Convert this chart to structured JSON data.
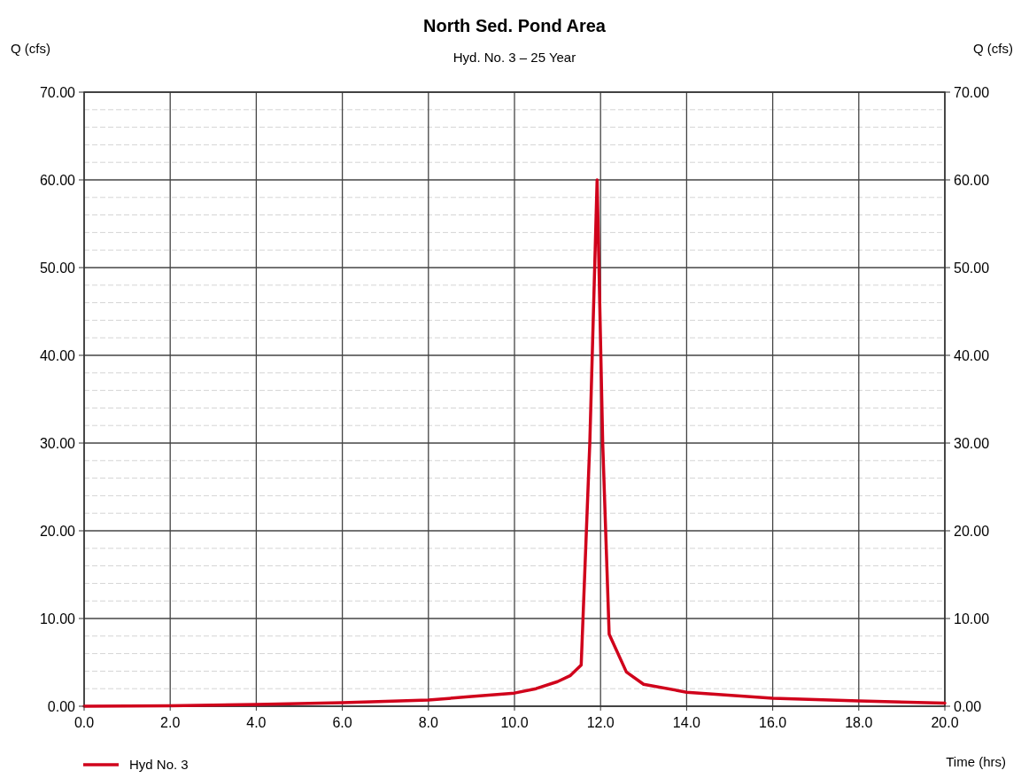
{
  "chart_data": {
    "type": "line",
    "title": "North Sed. Pond Area",
    "subtitle": "Hyd. No. 3 – 25 Year",
    "xlabel": "Time (hrs)",
    "ylabel": "Q (cfs)",
    "y2label": "Q (cfs)",
    "xlim": [
      0,
      20
    ],
    "xticks": [
      {
        "value": 0,
        "label": "0.0"
      },
      {
        "value": 2,
        "label": "2.0"
      },
      {
        "value": 4,
        "label": "4.0"
      },
      {
        "value": 6,
        "label": "6.0"
      },
      {
        "value": 8,
        "label": "8.0"
      },
      {
        "value": 10,
        "label": "10.0"
      },
      {
        "value": 12,
        "label": "12.0"
      },
      {
        "value": 14,
        "label": "14.0"
      },
      {
        "value": 16,
        "label": "16.0"
      },
      {
        "value": 18,
        "label": "18.0"
      },
      {
        "value": 20,
        "label": "20.0"
      }
    ],
    "ylim": [
      0,
      70
    ],
    "yticks": [
      {
        "value": 0,
        "label": "0.00"
      },
      {
        "value": 2,
        "label": null
      },
      {
        "value": 4,
        "label": null
      },
      {
        "value": 6,
        "label": null
      },
      {
        "value": 8,
        "label": null
      },
      {
        "value": 10,
        "label": "10.00"
      },
      {
        "value": 12,
        "label": null
      },
      {
        "value": 14,
        "label": null
      },
      {
        "value": 16,
        "label": null
      },
      {
        "value": 18,
        "label": null
      },
      {
        "value": 20,
        "label": "20.00"
      },
      {
        "value": 22,
        "label": null
      },
      {
        "value": 24,
        "label": null
      },
      {
        "value": 26,
        "label": null
      },
      {
        "value": 28,
        "label": null
      },
      {
        "value": 30,
        "label": "30.00"
      },
      {
        "value": 32,
        "label": null
      },
      {
        "value": 34,
        "label": null
      },
      {
        "value": 36,
        "label": null
      },
      {
        "value": 38,
        "label": null
      },
      {
        "value": 40,
        "label": "40.00"
      },
      {
        "value": 42,
        "label": null
      },
      {
        "value": 44,
        "label": null
      },
      {
        "value": 46,
        "label": null
      },
      {
        "value": 48,
        "label": null
      },
      {
        "value": 50,
        "label": "50.00"
      },
      {
        "value": 52,
        "label": null
      },
      {
        "value": 54,
        "label": null
      },
      {
        "value": 56,
        "label": null
      },
      {
        "value": 58,
        "label": null
      },
      {
        "value": 60,
        "label": "60.00"
      },
      {
        "value": 62,
        "label": null
      },
      {
        "value": 64,
        "label": null
      },
      {
        "value": 66,
        "label": null
      },
      {
        "value": 68,
        "label": null
      },
      {
        "value": 70,
        "label": "70.00"
      }
    ],
    "y2lim": [
      0,
      70
    ],
    "y2ticks": [
      {
        "value": 0,
        "label": "0.00"
      },
      {
        "value": 10,
        "label": "10.00"
      },
      {
        "value": 20,
        "label": "20.00"
      },
      {
        "value": 30,
        "label": "30.00"
      },
      {
        "value": 40,
        "label": "40.00"
      },
      {
        "value": 50,
        "label": "50.00"
      },
      {
        "value": 60,
        "label": "60.00"
      },
      {
        "value": 70,
        "label": "70.00"
      }
    ],
    "grid": true,
    "legend": "bottom left",
    "line_style": "solid",
    "marker": "none",
    "series": [
      {
        "name": "Hyd No. 3",
        "color": "#d0021b",
        "x": [
          0,
          2,
          4,
          6,
          8,
          9,
          10,
          10.5,
          11,
          11.3,
          11.55,
          11.75,
          11.92,
          12.05,
          12.2,
          12.6,
          13,
          14,
          16,
          18,
          20
        ],
        "values": [
          0,
          0.05,
          0.2,
          0.4,
          0.7,
          1.1,
          1.5,
          2,
          2.8,
          3.5,
          4.7,
          30,
          60,
          30,
          8.2,
          3.9,
          2.5,
          1.6,
          0.9,
          0.6,
          0.35
        ]
      }
    ]
  }
}
